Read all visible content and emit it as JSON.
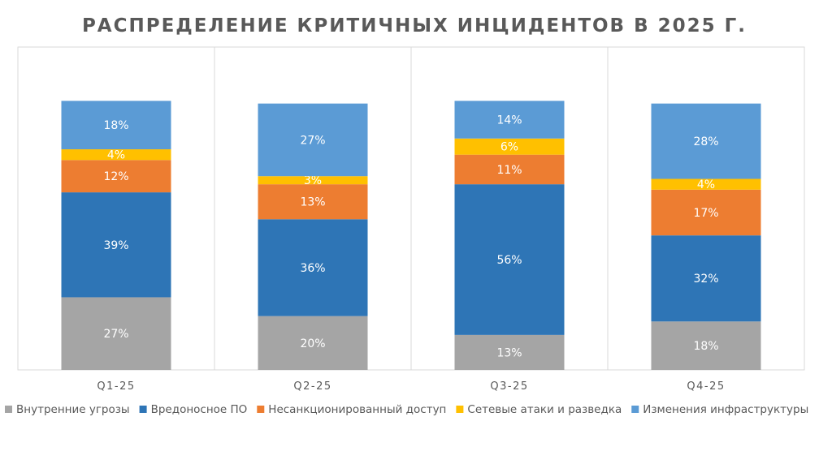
{
  "chart_data": {
    "type": "bar",
    "stacked": true,
    "percent_stacked": true,
    "title": "РАСПРЕДЕЛЕНИЕ КРИТИЧНЫХ ИНЦИДЕНТОВ В 2025 Г.",
    "categories": [
      "Q1-25",
      "Q2-25",
      "Q3-25",
      "Q4-25"
    ],
    "series": [
      {
        "name": "Внутренние угрозы",
        "color": "#a5a5a5",
        "values": [
          27,
          20,
          13,
          18
        ],
        "labels": [
          "27%",
          "20%",
          "13%",
          "18%"
        ]
      },
      {
        "name": "Вредоносное ПО",
        "color": "#2e75b6",
        "values": [
          39,
          36,
          56,
          32
        ],
        "labels": [
          "39%",
          "36%",
          "56%",
          "32%"
        ]
      },
      {
        "name": "Несанкционированный доступ",
        "color": "#ed7d31",
        "values": [
          12,
          13,
          11,
          17
        ],
        "labels": [
          "12%",
          "13%",
          "11%",
          "17%"
        ]
      },
      {
        "name": "Сетевые атаки и разведка",
        "color": "#ffc000",
        "values": [
          4,
          3,
          6,
          4
        ],
        "labels": [
          "4%",
          "3%",
          "6%",
          "4%"
        ]
      },
      {
        "name": "Изменения инфраструктуры",
        "color": "#5b9bd5",
        "values": [
          18,
          27,
          14,
          28
        ],
        "labels": [
          "18%",
          "27%",
          "14%",
          "28%"
        ]
      }
    ],
    "ylim": [
      0,
      120
    ],
    "grid": false,
    "legend_position": "bottom"
  }
}
